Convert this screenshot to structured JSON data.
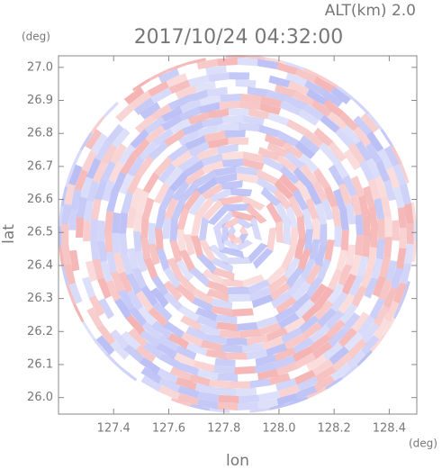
{
  "chart_data": {
    "type": "radar-ppi",
    "title": "2017/10/24 04:32:00",
    "subtitle": "ALT(km) 2.0",
    "x_label": "lon",
    "y_label": "lat",
    "x_unit": "(deg)",
    "y_unit": "(deg)",
    "xlim": [
      127.2,
      128.5
    ],
    "ylim": [
      25.95,
      27.035
    ],
    "xticks": [
      127.4,
      127.6,
      127.8,
      {
        "value": 128.0,
        "label": "128.0"
      },
      128.2,
      128.4
    ],
    "yticks": [
      {
        "value": 26.0,
        "label": "26.0"
      },
      26.1,
      26.2,
      26.3,
      26.4,
      26.5,
      26.6,
      26.7,
      26.8,
      26.9,
      {
        "value": 27.0,
        "label": "27.0"
      }
    ]
  }
}
